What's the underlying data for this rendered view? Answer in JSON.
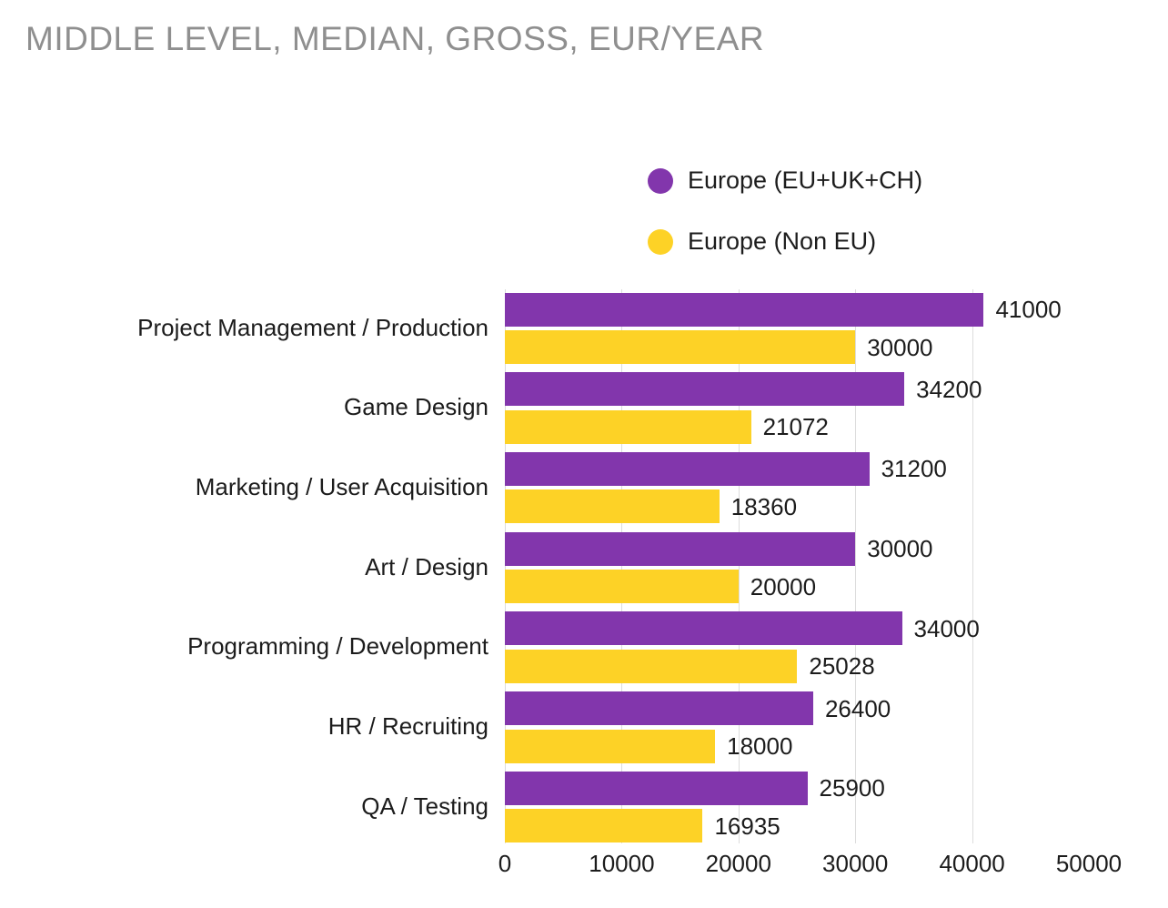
{
  "title": "MIDDLE LEVEL, MEDIAN, GROSS, EUR/YEAR",
  "colors": {
    "series_eu": "#8236AC",
    "series_non_eu": "#FDD226",
    "grid": "#DCDCDC",
    "text": "#1C1C1C",
    "title_gray": "#8F8F8F",
    "background": "#FFFFFF"
  },
  "legend": {
    "items": [
      {
        "label": "Europe (EU+UK+CH)",
        "color_key": "series_eu"
      },
      {
        "label": "Europe (Non EU)",
        "color_key": "series_non_eu"
      }
    ]
  },
  "chart_data": {
    "type": "bar",
    "orientation": "horizontal",
    "title": "MIDDLE LEVEL, MEDIAN, GROSS, EUR/YEAR",
    "categories": [
      "Project Management / Production",
      "Game Design",
      "Marketing / User Acquisition",
      "Art / Design",
      "Programming / Development",
      "HR / Recruiting",
      "QA / Testing"
    ],
    "series": [
      {
        "name": "Europe (EU+UK+CH)",
        "color": "#8236AC",
        "values": [
          41000,
          34200,
          31200,
          30000,
          34000,
          26400,
          25900
        ]
      },
      {
        "name": "Europe (Non EU)",
        "color": "#FDD226",
        "values": [
          30000,
          21072,
          18360,
          20000,
          25028,
          18000,
          16935
        ]
      }
    ],
    "xlabel": "",
    "ylabel": "",
    "xlim": [
      0,
      50000
    ],
    "x_ticks": [
      0,
      10000,
      20000,
      30000,
      40000,
      50000
    ],
    "grid": "vertical gridlines at 0-40000, none at 50000",
    "legend_position": "top-right",
    "value_labels": "shown at end of each bar"
  }
}
